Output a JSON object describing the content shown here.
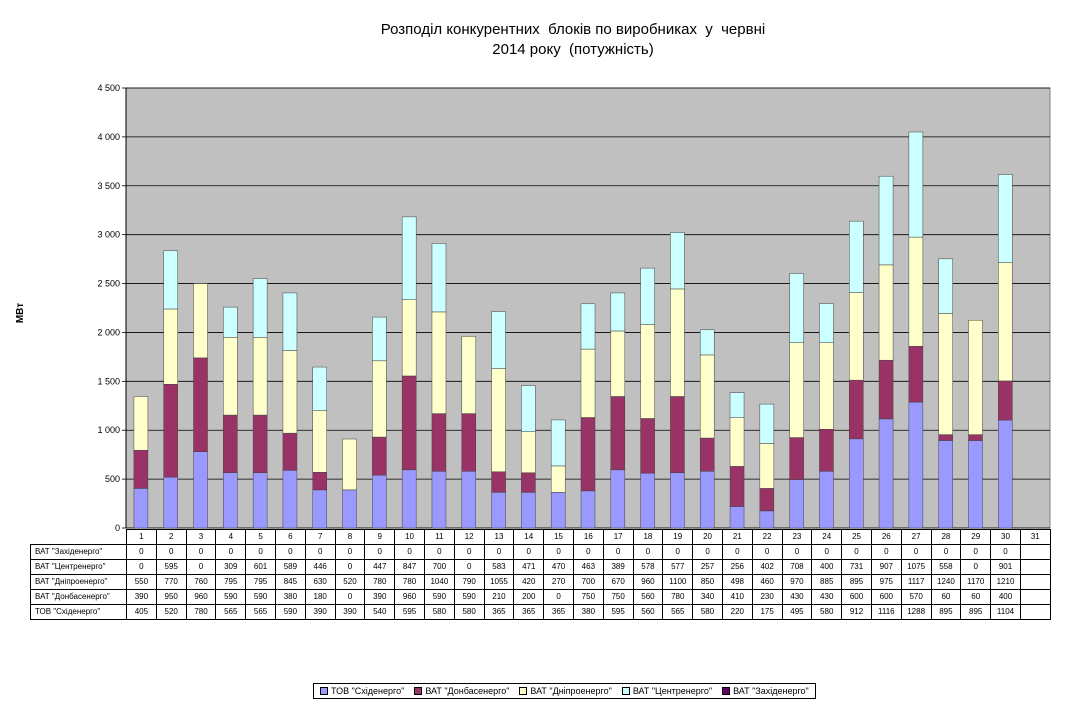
{
  "title_line1": "Розподіл конкурентних  блоків по виробниках  у  червні",
  "title_line2": "2014 року  (потужність)",
  "chart_data": {
    "type": "bar",
    "stacked": true,
    "title": "Розподіл конкурентних  блоків по виробниках  у  червні 2014 року  (потужність)",
    "xlabel": "",
    "ylabel": "МВт",
    "ylim": [
      0,
      4500
    ],
    "yticks": [
      0,
      500,
      1000,
      1500,
      2000,
      2500,
      3000,
      3500,
      4000,
      4500
    ],
    "ytick_labels": [
      "0",
      "500",
      "1 000",
      "1 500",
      "2 000",
      "2 500",
      "3 000",
      "3 500",
      "4 000",
      "4 500"
    ],
    "grid": true,
    "legend_position": "bottom",
    "categories": [
      "1",
      "2",
      "3",
      "4",
      "5",
      "6",
      "7",
      "8",
      "9",
      "10",
      "11",
      "12",
      "13",
      "14",
      "15",
      "16",
      "17",
      "18",
      "19",
      "20",
      "21",
      "22",
      "23",
      "24",
      "25",
      "26",
      "27",
      "28",
      "29",
      "30",
      "31"
    ],
    "series": [
      {
        "name": "ТОВ \"Східенерго\"",
        "color": "#9999ff",
        "values": [
          405,
          520,
          780,
          565,
          565,
          590,
          390,
          390,
          540,
          595,
          580,
          580,
          365,
          365,
          365,
          380,
          595,
          560,
          565,
          580,
          220,
          175,
          495,
          580,
          912,
          1116,
          1288,
          895,
          895,
          1104,
          null
        ]
      },
      {
        "name": "ВАТ \"Донбасенерго\"",
        "color": "#993366",
        "values": [
          390,
          950,
          960,
          590,
          590,
          380,
          180,
          0,
          390,
          960,
          590,
          590,
          210,
          200,
          0,
          750,
          750,
          560,
          780,
          340,
          410,
          230,
          430,
          430,
          600,
          600,
          570,
          60,
          60,
          400,
          null
        ]
      },
      {
        "name": "ВАТ \"Дніпроенерго\"",
        "color": "#ffffcc",
        "values": [
          550,
          770,
          760,
          795,
          795,
          845,
          630,
          520,
          780,
          780,
          1040,
          790,
          1055,
          420,
          270,
          700,
          670,
          960,
          1100,
          850,
          498,
          460,
          970,
          885,
          895,
          975,
          1117,
          1240,
          1170,
          1210,
          null
        ]
      },
      {
        "name": "ВАТ \"Центренерго\"",
        "color": "#ccffff",
        "values": [
          0,
          595,
          0,
          309,
          601,
          589,
          446,
          0,
          447,
          847,
          700,
          0,
          583,
          471,
          470,
          463,
          389,
          578,
          577,
          257,
          256,
          402,
          708,
          400,
          731,
          907,
          1075,
          558,
          0,
          901,
          null
        ]
      },
      {
        "name": "ВАТ \"Західенерго\"",
        "color": "#660066",
        "values": [
          0,
          0,
          0,
          0,
          0,
          0,
          0,
          0,
          0,
          0,
          0,
          0,
          0,
          0,
          0,
          0,
          0,
          0,
          0,
          0,
          0,
          0,
          0,
          0,
          0,
          0,
          0,
          0,
          0,
          0,
          null
        ]
      }
    ],
    "plot_background": "#c0c0c0"
  }
}
